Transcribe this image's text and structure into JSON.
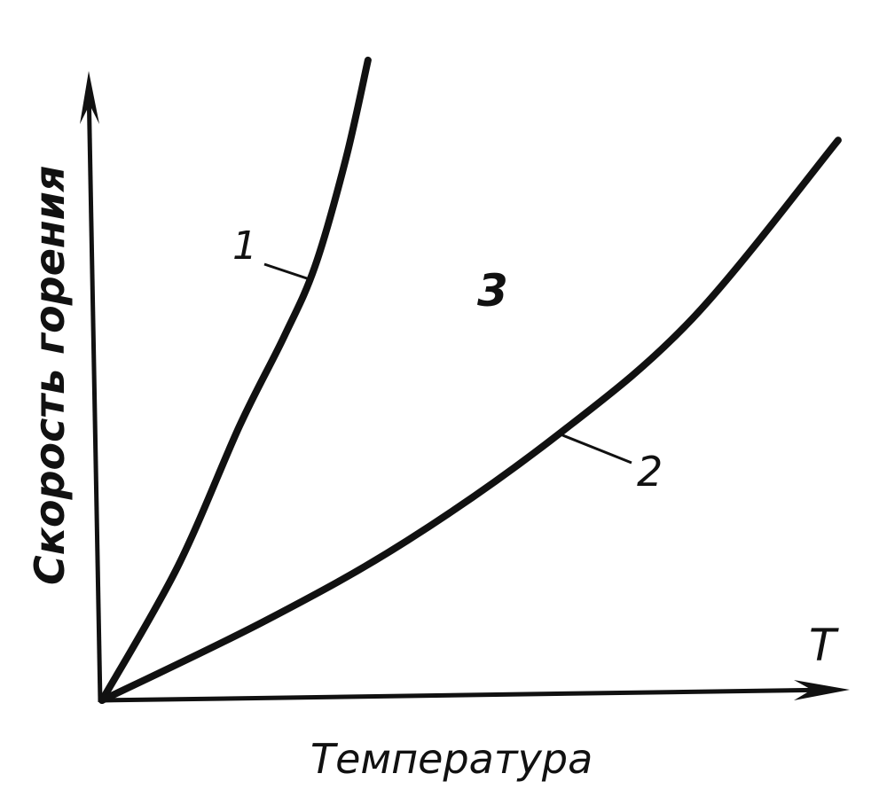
{
  "chart_data": {
    "type": "line",
    "title": "",
    "xlabel": "Температура",
    "ylabel": "Скорость горения",
    "x_axis_symbol": "T",
    "xlim": [
      0,
      100
    ],
    "ylim": [
      0,
      100
    ],
    "ticks": false,
    "grid": false,
    "legend": "none",
    "line_color": "#111111",
    "region_label": "3",
    "series": [
      {
        "name": "1",
        "points": [
          [
            0,
            0
          ],
          [
            10.1,
            21.1
          ],
          [
            18.5,
            43.7
          ],
          [
            24.4,
            57.7
          ],
          [
            28.6,
            69
          ],
          [
            32.7,
            85.9
          ],
          [
            35.7,
            101.7
          ]
        ]
      },
      {
        "name": "2",
        "points": [
          [
            0,
            0
          ],
          [
            22,
            12.7
          ],
          [
            41,
            25.4
          ],
          [
            61.3,
            42.3
          ],
          [
            79.2,
            60.6
          ],
          [
            98.8,
            89
          ]
        ]
      }
    ]
  }
}
